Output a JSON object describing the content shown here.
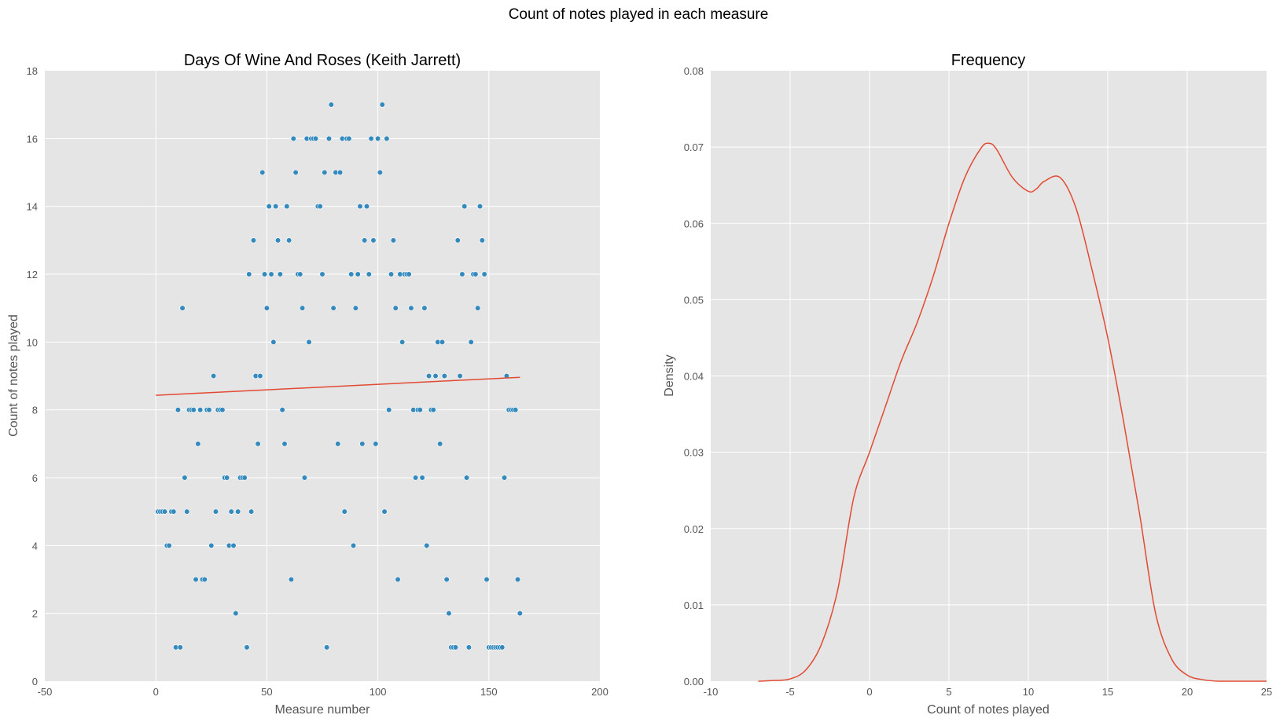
{
  "suptitle": "Count of notes played in each measure",
  "colors": {
    "plot_background": "#e5e5e5",
    "grid": "#ffffff",
    "points": "#348abd",
    "lines": "#e24a33",
    "text": "#555555",
    "title": "#000000"
  },
  "chart_data": [
    {
      "type": "scatter",
      "title": "Days Of Wine And Roses (Keith Jarrett)",
      "xlabel": "Measure number",
      "ylabel": "Count of notes played",
      "xlim": [
        -50,
        200
      ],
      "ylim": [
        0,
        18
      ],
      "xticks": [
        -50,
        0,
        50,
        100,
        150,
        200
      ],
      "yticks": [
        0,
        2,
        4,
        6,
        8,
        10,
        12,
        14,
        16,
        18
      ],
      "grid": true,
      "points": [
        [
          1,
          5
        ],
        [
          2,
          5
        ],
        [
          3,
          5
        ],
        [
          4,
          5
        ],
        [
          5,
          4
        ],
        [
          6,
          4
        ],
        [
          7,
          5
        ],
        [
          8,
          5
        ],
        [
          9,
          1
        ],
        [
          10,
          8
        ],
        [
          11,
          1
        ],
        [
          12,
          11
        ],
        [
          13,
          6
        ],
        [
          14,
          5
        ],
        [
          15,
          8
        ],
        [
          16,
          8
        ],
        [
          17,
          8
        ],
        [
          18,
          3
        ],
        [
          19,
          7
        ],
        [
          20,
          8
        ],
        [
          21,
          3
        ],
        [
          22,
          3
        ],
        [
          23,
          8
        ],
        [
          24,
          8
        ],
        [
          25,
          4
        ],
        [
          26,
          9
        ],
        [
          27,
          5
        ],
        [
          28,
          8
        ],
        [
          29,
          8
        ],
        [
          30,
          8
        ],
        [
          31,
          6
        ],
        [
          32,
          6
        ],
        [
          33,
          4
        ],
        [
          34,
          5
        ],
        [
          35,
          4
        ],
        [
          36,
          2
        ],
        [
          37,
          5
        ],
        [
          38,
          6
        ],
        [
          39,
          6
        ],
        [
          40,
          6
        ],
        [
          41,
          1
        ],
        [
          42,
          12
        ],
        [
          43,
          5
        ],
        [
          44,
          13
        ],
        [
          45,
          9
        ],
        [
          46,
          7
        ],
        [
          47,
          9
        ],
        [
          48,
          15
        ],
        [
          49,
          12
        ],
        [
          50,
          11
        ],
        [
          51,
          14
        ],
        [
          52,
          12
        ],
        [
          53,
          10
        ],
        [
          54,
          14
        ],
        [
          55,
          13
        ],
        [
          56,
          12
        ],
        [
          57,
          8
        ],
        [
          58,
          7
        ],
        [
          59,
          14
        ],
        [
          60,
          13
        ],
        [
          61,
          3
        ],
        [
          62,
          16
        ],
        [
          63,
          15
        ],
        [
          64,
          12
        ],
        [
          65,
          12
        ],
        [
          66,
          11
        ],
        [
          67,
          6
        ],
        [
          68,
          16
        ],
        [
          69,
          10
        ],
        [
          70,
          16
        ],
        [
          71,
          16
        ],
        [
          72,
          16
        ],
        [
          73,
          14
        ],
        [
          74,
          14
        ],
        [
          75,
          12
        ],
        [
          76,
          15
        ],
        [
          77,
          1
        ],
        [
          78,
          16
        ],
        [
          79,
          17
        ],
        [
          80,
          11
        ],
        [
          81,
          15
        ],
        [
          82,
          7
        ],
        [
          83,
          15
        ],
        [
          84,
          16
        ],
        [
          85,
          5
        ],
        [
          86,
          16
        ],
        [
          87,
          16
        ],
        [
          88,
          12
        ],
        [
          89,
          4
        ],
        [
          90,
          11
        ],
        [
          91,
          12
        ],
        [
          92,
          14
        ],
        [
          93,
          7
        ],
        [
          94,
          13
        ],
        [
          95,
          14
        ],
        [
          96,
          12
        ],
        [
          97,
          16
        ],
        [
          98,
          13
        ],
        [
          99,
          7
        ],
        [
          100,
          16
        ],
        [
          101,
          15
        ],
        [
          102,
          17
        ],
        [
          103,
          5
        ],
        [
          104,
          16
        ],
        [
          105,
          8
        ],
        [
          106,
          12
        ],
        [
          107,
          13
        ],
        [
          108,
          11
        ],
        [
          109,
          3
        ],
        [
          110,
          12
        ],
        [
          111,
          10
        ],
        [
          112,
          12
        ],
        [
          113,
          12
        ],
        [
          114,
          12
        ],
        [
          115,
          11
        ],
        [
          116,
          8
        ],
        [
          117,
          6
        ],
        [
          118,
          8
        ],
        [
          119,
          8
        ],
        [
          120,
          6
        ],
        [
          121,
          11
        ],
        [
          122,
          4
        ],
        [
          123,
          9
        ],
        [
          124,
          8
        ],
        [
          125,
          8
        ],
        [
          126,
          9
        ],
        [
          127,
          10
        ],
        [
          128,
          7
        ],
        [
          129,
          10
        ],
        [
          130,
          9
        ],
        [
          131,
          3
        ],
        [
          132,
          2
        ],
        [
          133,
          1
        ],
        [
          134,
          1
        ],
        [
          135,
          1
        ],
        [
          136,
          13
        ],
        [
          137,
          9
        ],
        [
          138,
          12
        ],
        [
          139,
          14
        ],
        [
          140,
          6
        ],
        [
          141,
          1
        ],
        [
          142,
          10
        ],
        [
          143,
          12
        ],
        [
          144,
          12
        ],
        [
          145,
          11
        ],
        [
          146,
          14
        ],
        [
          147,
          13
        ],
        [
          148,
          12
        ],
        [
          149,
          3
        ],
        [
          150,
          1
        ],
        [
          151,
          1
        ],
        [
          152,
          1
        ],
        [
          153,
          1
        ],
        [
          154,
          1
        ],
        [
          155,
          1
        ],
        [
          156,
          1
        ],
        [
          157,
          6
        ],
        [
          158,
          9
        ],
        [
          159,
          8
        ],
        [
          160,
          8
        ],
        [
          161,
          8
        ],
        [
          162,
          8
        ],
        [
          163,
          3
        ],
        [
          164,
          2
        ]
      ],
      "regression_line": {
        "x": [
          0,
          164
        ],
        "y": [
          8.43,
          8.96
        ]
      }
    },
    {
      "type": "line",
      "title": "Frequency",
      "xlabel": "Count of notes played",
      "ylabel": "Density",
      "xlim": [
        -10,
        25
      ],
      "ylim": [
        0,
        0.08
      ],
      "xticks": [
        -10,
        -5,
        0,
        5,
        10,
        15,
        20,
        25
      ],
      "yticks": [
        0.0,
        0.01,
        0.02,
        0.03,
        0.04,
        0.05,
        0.06,
        0.07,
        0.08
      ],
      "ytick_labels": [
        "0.00",
        "0.01",
        "0.02",
        "0.03",
        "0.04",
        "0.05",
        "0.06",
        "0.07",
        "0.08"
      ],
      "grid": true,
      "x": [
        -7,
        -6,
        -5,
        -4,
        -3,
        -2,
        -1,
        0,
        1,
        2,
        3,
        4,
        5,
        6,
        7,
        7.5,
        8,
        9,
        10,
        10.5,
        11,
        12,
        13,
        14,
        15,
        16,
        17,
        18,
        19,
        20,
        21,
        22,
        23,
        24,
        25
      ],
      "y": [
        0.0,
        0.0001,
        0.0003,
        0.0015,
        0.005,
        0.012,
        0.024,
        0.03,
        0.036,
        0.042,
        0.047,
        0.053,
        0.06,
        0.066,
        0.0698,
        0.0705,
        0.0697,
        0.066,
        0.0642,
        0.0645,
        0.0655,
        0.066,
        0.062,
        0.054,
        0.045,
        0.034,
        0.022,
        0.009,
        0.003,
        0.0008,
        0.0002,
        0.0,
        0.0,
        0.0,
        0.0
      ]
    }
  ]
}
